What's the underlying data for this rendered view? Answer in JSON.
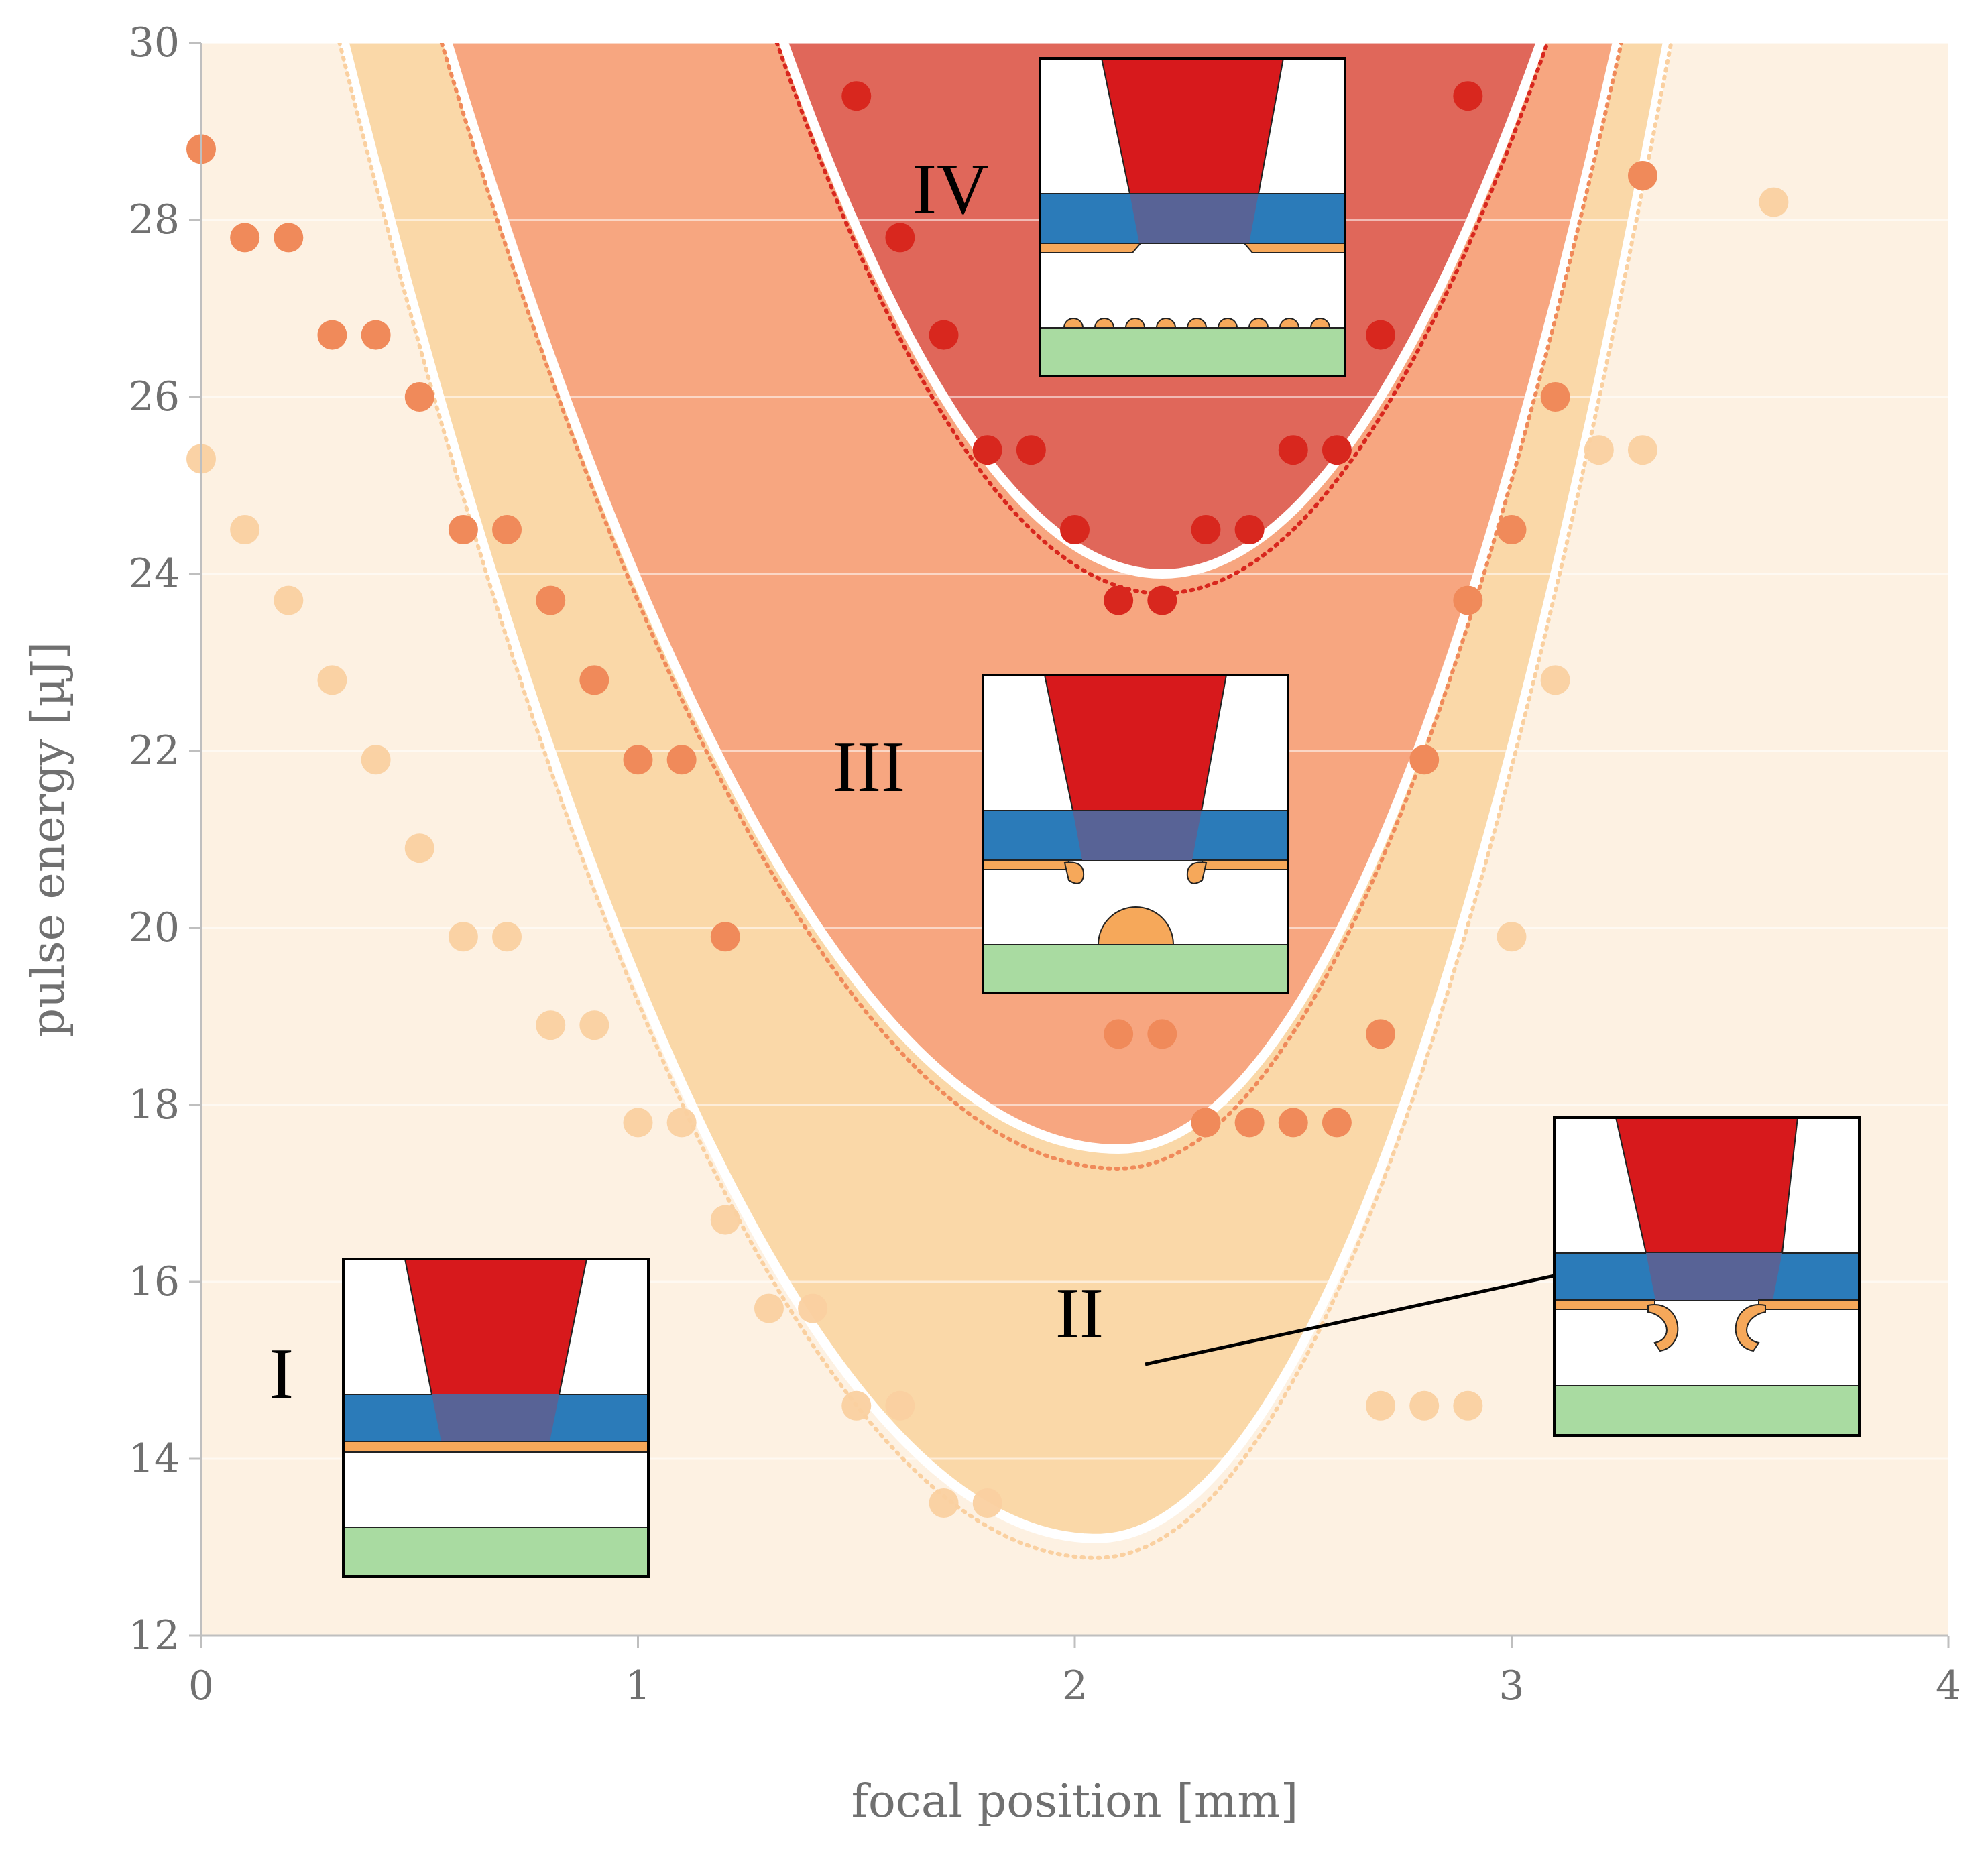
{
  "chart_data": {
    "type": "scatter",
    "title": "",
    "xlabel": "focal position [mm]",
    "ylabel": "pulse energy [µJ]",
    "xlim": [
      0,
      4
    ],
    "ylim": [
      12,
      30
    ],
    "xticks": [
      "0",
      "1",
      "2",
      "3",
      "4"
    ],
    "yticks": [
      "12",
      "14",
      "16",
      "18",
      "20",
      "22",
      "24",
      "26",
      "28",
      "30"
    ],
    "grid": true,
    "colors": {
      "plot_background": "#fdf1e2",
      "region_II": "#fad8a8",
      "region_III": "#f7a680",
      "region_IV": "#e0675a",
      "points_II": "#fad0a0",
      "points_III": "#f08a5a",
      "points_IV": "#d8271e",
      "laser": "#d7191c",
      "glass": "#2b7bb9",
      "glass_overlap": "#586396",
      "metal": "#f6a85a",
      "substrate": "#a9dba1"
    },
    "regions": [
      {
        "label": "I",
        "description": "no ablation"
      },
      {
        "label": "II",
        "description": "film delamination with curled edges"
      },
      {
        "label": "III",
        "description": "film ablation with droplet on substrate"
      },
      {
        "label": "IV",
        "description": "film ablation with dispersed particles on substrate"
      }
    ],
    "boundaries": [
      {
        "name": "II",
        "vertex": [
          2.05,
          13.1
        ],
        "slope_left": 5.7,
        "slope_right": 9.9
      },
      {
        "name": "III",
        "vertex": [
          2.1,
          17.5
        ],
        "slope_left": 5.3,
        "slope_right": 9.6
      },
      {
        "name": "IV",
        "vertex": [
          2.2,
          24.0
        ],
        "slope_left": 8.0,
        "slope_right": 8.0
      }
    ],
    "series": [
      {
        "name": "II",
        "points": [
          [
            0,
            25.3
          ],
          [
            0.1,
            24.5
          ],
          [
            0.2,
            23.7
          ],
          [
            0.3,
            22.8
          ],
          [
            0.4,
            21.9
          ],
          [
            0.5,
            20.9
          ],
          [
            0.6,
            19.9
          ],
          [
            0.7,
            19.9
          ],
          [
            0.8,
            18.9
          ],
          [
            0.9,
            18.9
          ],
          [
            1.0,
            17.8
          ],
          [
            1.1,
            17.8
          ],
          [
            1.2,
            16.7
          ],
          [
            1.3,
            15.7
          ],
          [
            1.4,
            15.7
          ],
          [
            1.5,
            14.6
          ],
          [
            1.6,
            14.6
          ],
          [
            1.7,
            13.5
          ],
          [
            1.8,
            13.5
          ],
          [
            2.7,
            14.6
          ],
          [
            2.8,
            14.6
          ],
          [
            2.9,
            14.6
          ],
          [
            3.0,
            19.9
          ],
          [
            3.1,
            22.8
          ],
          [
            3.2,
            25.4
          ],
          [
            3.3,
            25.4
          ],
          [
            3.3,
            28.5
          ],
          [
            3.6,
            28.2
          ]
        ]
      },
      {
        "name": "III",
        "points": [
          [
            0,
            28.8
          ],
          [
            0.1,
            27.8
          ],
          [
            0.2,
            27.8
          ],
          [
            0.3,
            26.7
          ],
          [
            0.4,
            26.7
          ],
          [
            0.5,
            26.0
          ],
          [
            0.6,
            24.5
          ],
          [
            0.7,
            24.5
          ],
          [
            0.8,
            23.7
          ],
          [
            0.9,
            22.8
          ],
          [
            1.0,
            21.9
          ],
          [
            1.1,
            21.9
          ],
          [
            1.2,
            19.9
          ],
          [
            2.1,
            18.8
          ],
          [
            2.2,
            18.8
          ],
          [
            2.3,
            17.8
          ],
          [
            2.4,
            17.8
          ],
          [
            2.5,
            17.8
          ],
          [
            2.6,
            17.8
          ],
          [
            2.7,
            18.8
          ],
          [
            2.8,
            21.9
          ],
          [
            2.9,
            23.7
          ],
          [
            3.0,
            24.5
          ],
          [
            3.1,
            26.0
          ],
          [
            3.3,
            28.5
          ]
        ]
      },
      {
        "name": "IV",
        "points": [
          [
            1.5,
            29.4
          ],
          [
            1.6,
            27.8
          ],
          [
            1.7,
            26.7
          ],
          [
            1.8,
            25.4
          ],
          [
            1.9,
            25.4
          ],
          [
            2.0,
            24.5
          ],
          [
            2.1,
            23.7
          ],
          [
            2.2,
            23.7
          ],
          [
            2.3,
            24.5
          ],
          [
            2.4,
            24.5
          ],
          [
            2.5,
            25.4
          ],
          [
            2.6,
            25.4
          ],
          [
            2.7,
            26.7
          ],
          [
            2.9,
            29.4
          ]
        ]
      }
    ]
  }
}
